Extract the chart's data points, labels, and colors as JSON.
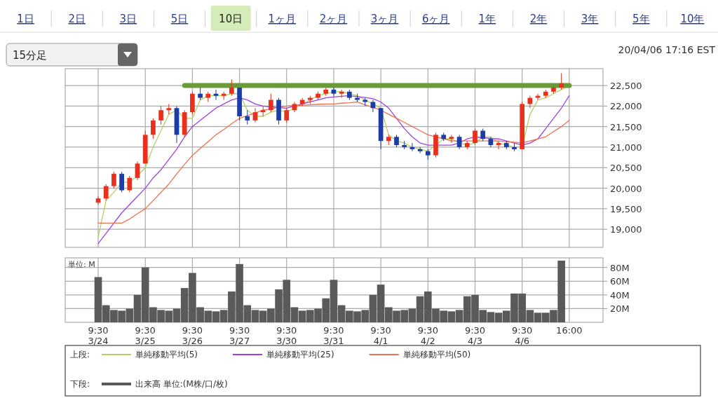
{
  "chart_data": [
    {
      "type": "candlestick",
      "annotations": [
        "1日",
        "2日",
        "3日",
        "5日",
        "10日",
        "1ヶ月",
        "2ヶ月",
        "3ヶ月",
        "6ヶ月",
        "1年",
        "2年",
        "3年",
        "5年",
        "10年",
        "15分足",
        "20/04/06 17:16 EST",
        "上段:"
      ],
      "categories": [
        null,
        null,
        null,
        null,
        null,
        null,
        null,
        null,
        null,
        null,
        null,
        null,
        null,
        null,
        null,
        null,
        null,
        null,
        null,
        null,
        null,
        null,
        null,
        null,
        null,
        null,
        null,
        null,
        null,
        null,
        null,
        null,
        null,
        null,
        null,
        null,
        null,
        null,
        null,
        null,
        null,
        null,
        null,
        null,
        null,
        null,
        null,
        null,
        null,
        null,
        null,
        null,
        null,
        null,
        null,
        null,
        null,
        null,
        null,
        null,
        null
      ],
      "ohlc": [
        [
          19650,
          19800,
          19600,
          19750
        ],
        [
          19750,
          20100,
          19700,
          20050
        ],
        [
          20050,
          20400,
          20000,
          20350
        ],
        [
          20350,
          20400,
          19900,
          19950
        ],
        [
          19950,
          20300,
          19900,
          20250
        ],
        [
          20250,
          20650,
          20200,
          20600
        ],
        [
          20600,
          21400,
          20600,
          21300
        ],
        [
          21300,
          21700,
          21200,
          21650
        ],
        [
          21650,
          22000,
          21550,
          21900
        ],
        [
          21900,
          22050,
          21800,
          21950
        ],
        [
          21950,
          22000,
          21100,
          21300
        ],
        [
          21300,
          21900,
          21250,
          21850
        ],
        [
          21850,
          22350,
          21800,
          22300
        ],
        [
          22300,
          22450,
          22150,
          22200
        ],
        [
          22200,
          22350,
          22100,
          22300
        ],
        [
          22300,
          22400,
          22150,
          22250
        ],
        [
          22250,
          22350,
          22150,
          22300
        ],
        [
          22300,
          22650,
          22250,
          22450
        ],
        [
          22450,
          22450,
          21650,
          21750
        ],
        [
          21750,
          21900,
          21550,
          21650
        ],
        [
          21650,
          21950,
          21600,
          21850
        ],
        [
          21850,
          22000,
          21750,
          21900
        ],
        [
          21900,
          22300,
          21850,
          22150
        ],
        [
          22150,
          22200,
          21550,
          21650
        ],
        [
          21650,
          21950,
          21600,
          21900
        ],
        [
          21900,
          22100,
          21850,
          22050
        ],
        [
          22050,
          22200,
          22000,
          22150
        ],
        [
          22150,
          22250,
          22050,
          22200
        ],
        [
          22200,
          22350,
          22150,
          22300
        ],
        [
          22300,
          22450,
          22250,
          22400
        ],
        [
          22400,
          22450,
          22250,
          22300
        ],
        [
          22300,
          22400,
          22200,
          22350
        ],
        [
          22350,
          22400,
          22150,
          22200
        ],
        [
          22200,
          22300,
          22100,
          22150
        ],
        [
          22150,
          22200,
          22000,
          22100
        ],
        [
          22100,
          22150,
          21850,
          21950
        ],
        [
          21950,
          21950,
          20950,
          21150
        ],
        [
          21150,
          21300,
          21050,
          21250
        ],
        [
          21250,
          21300,
          21000,
          21050
        ],
        [
          21050,
          21150,
          20950,
          21000
        ],
        [
          21000,
          21100,
          20900,
          20950
        ],
        [
          20950,
          21000,
          20850,
          20900
        ],
        [
          20900,
          20950,
          20700,
          20800
        ],
        [
          20800,
          21350,
          20750,
          21300
        ],
        [
          21300,
          21350,
          21150,
          21200
        ],
        [
          21200,
          21300,
          21100,
          21250
        ],
        [
          21250,
          21300,
          20950,
          21000
        ],
        [
          21000,
          21150,
          20950,
          21100
        ],
        [
          21100,
          21450,
          21050,
          21400
        ],
        [
          21400,
          21450,
          21150,
          21200
        ],
        [
          21200,
          21250,
          21000,
          21050
        ],
        [
          21050,
          21150,
          20950,
          21100
        ],
        [
          21100,
          21150,
          20950,
          21000
        ],
        [
          21000,
          21100,
          20900,
          20950
        ],
        [
          20950,
          22100,
          20950,
          22050
        ],
        [
          22050,
          22250,
          21950,
          22200
        ],
        [
          22200,
          22300,
          22150,
          22250
        ],
        [
          22250,
          22400,
          22200,
          22350
        ],
        [
          22350,
          22500,
          22300,
          22450
        ],
        [
          22450,
          22800,
          22400,
          22550
        ],
        null
      ],
      "series": [
        {
          "type": "line",
          "name": "単純移動平均(5)",
          "color": "#b4d060",
          "values": [
            18800,
            19700,
            19900,
            20150,
            20150,
            20300,
            20500,
            21000,
            21400,
            21800,
            21900,
            21700,
            21700,
            22150,
            22250,
            22250,
            22250,
            22300,
            22300,
            21900,
            21750,
            21750,
            21850,
            21900,
            21850,
            21950,
            22050,
            22150,
            22250,
            22300,
            22350,
            22350,
            22300,
            22250,
            22150,
            22050,
            21950,
            21300,
            21150,
            21100,
            21000,
            20950,
            20900,
            21050,
            21200,
            21200,
            21100,
            21050,
            21100,
            21250,
            21250,
            21100,
            21050,
            21000,
            21000,
            21800,
            22150,
            22200,
            22300,
            22400,
            22500
          ]
        },
        {
          "type": "line",
          "name": "単純移動平均(25)",
          "color": "#a040e0",
          "values": [
            18650,
            18900,
            19150,
            19400,
            19600,
            19800,
            20000,
            20250,
            20450,
            20700,
            20950,
            21250,
            21500,
            21650,
            21800,
            21950,
            22050,
            22150,
            22200,
            22150,
            22050,
            22000,
            21980,
            21960,
            21950,
            22000,
            22050,
            22100,
            22150,
            22200,
            22220,
            22240,
            22250,
            22230,
            22210,
            22180,
            22100,
            21950,
            21700,
            21450,
            21250,
            21100,
            21050,
            21050,
            21050,
            21050,
            21100,
            21200,
            21250,
            21230,
            21210,
            21200,
            21150,
            21100,
            21050,
            21100,
            21200,
            21450,
            21700,
            21950,
            22250
          ]
        },
        {
          "type": "line",
          "name": "単純移動平均(50)",
          "color": "#f07050",
          "values": [
            19150,
            19150,
            19150,
            19150,
            19250,
            19380,
            19500,
            19700,
            19900,
            20100,
            20350,
            20580,
            20800,
            20970,
            21130,
            21300,
            21430,
            21570,
            21700,
            21770,
            21830,
            21900,
            21930,
            21970,
            22000,
            22010,
            22020,
            22030,
            22040,
            22050,
            22050,
            22070,
            22080,
            22100,
            22030,
            21970,
            21900,
            21800,
            21700,
            21600,
            21500,
            21400,
            21300,
            21250,
            21200,
            21150,
            21150,
            21150,
            21150,
            21150,
            21150,
            21150,
            21130,
            21120,
            21100,
            21150,
            21200,
            21250,
            21380,
            21500,
            21650
          ]
        },
        {
          "type": "line",
          "color": "#6a9a3a",
          "values": [
            null,
            null,
            null,
            null,
            null,
            null,
            null,
            null,
            null,
            null,
            null,
            22500,
            22500,
            22500,
            22500,
            22500,
            22500,
            22500,
            22500,
            22500,
            22500,
            22500,
            22500,
            22500,
            22500,
            22500,
            22500,
            22500,
            22500,
            22500,
            22500,
            22500,
            22500,
            22500,
            22500,
            22500,
            22500,
            22500,
            22500,
            22500,
            22500,
            22500,
            22500,
            22500,
            22500,
            22500,
            22500,
            22500,
            22500,
            22500,
            22500,
            22500,
            22500,
            22500,
            22500,
            22500,
            22500,
            22500,
            22500,
            22500,
            22500
          ]
        }
      ],
      "ylim": [
        18560,
        22910
      ],
      "yticks": [
        {
          "value": 19000,
          "label": "19,000"
        },
        {
          "value": 19500,
          "label": "19,500"
        },
        {
          "value": 20000,
          "label": "20,000"
        },
        {
          "value": 20500,
          "label": "20,500"
        },
        {
          "value": 21000,
          "label": "21,000"
        },
        {
          "value": 21500,
          "label": "21,500"
        },
        {
          "value": 22000,
          "label": "22,000"
        },
        {
          "value": 22500,
          "label": "22,500"
        }
      ],
      "tick_labels": "y",
      "grid": true,
      "legend": "bottom"
    },
    {
      "type": "bar",
      "ylabel": "単位: M",
      "annotations": [
        "下段:"
      ],
      "categories": [
        "9:30\n3/24",
        null,
        null,
        null,
        null,
        null,
        "9:30\n3/25",
        null,
        null,
        null,
        null,
        null,
        "9:30\n3/26",
        null,
        null,
        null,
        null,
        null,
        "9:30\n3/27",
        null,
        null,
        null,
        null,
        null,
        "9:30\n3/30",
        null,
        null,
        null,
        null,
        null,
        "9:30\n3/31",
        null,
        null,
        null,
        null,
        null,
        "9:30\n4/1",
        null,
        null,
        null,
        null,
        null,
        "9:30\n4/2",
        null,
        null,
        null,
        null,
        null,
        "9:30\n4/3",
        null,
        null,
        null,
        null,
        null,
        "9:30\n4/6",
        null,
        null,
        null,
        null,
        null,
        "16:00"
      ],
      "series": [
        {
          "name": "出来高 単位:(M株/口/枚)",
          "color": "#5a5a5a",
          "values": [
            66,
            25,
            18,
            17,
            20,
            40,
            80,
            22,
            18,
            17,
            20,
            50,
            72,
            22,
            17,
            16,
            18,
            45,
            85,
            25,
            18,
            17,
            20,
            48,
            62,
            22,
            17,
            18,
            20,
            35,
            62,
            25,
            17,
            16,
            18,
            40,
            55,
            22,
            17,
            18,
            20,
            38,
            45,
            20,
            17,
            16,
            18,
            38,
            40,
            18,
            15,
            14,
            17,
            42,
            42,
            18,
            14,
            14,
            18,
            90,
            null
          ]
        }
      ],
      "ylim": [
        0,
        94
      ],
      "yticks": [
        {
          "value": 20,
          "label": "20M"
        },
        {
          "value": 40,
          "label": "40M"
        },
        {
          "value": 60,
          "label": "60M"
        },
        {
          "value": 80,
          "label": "80M"
        }
      ],
      "grid": true,
      "legend": "bottom"
    }
  ]
}
